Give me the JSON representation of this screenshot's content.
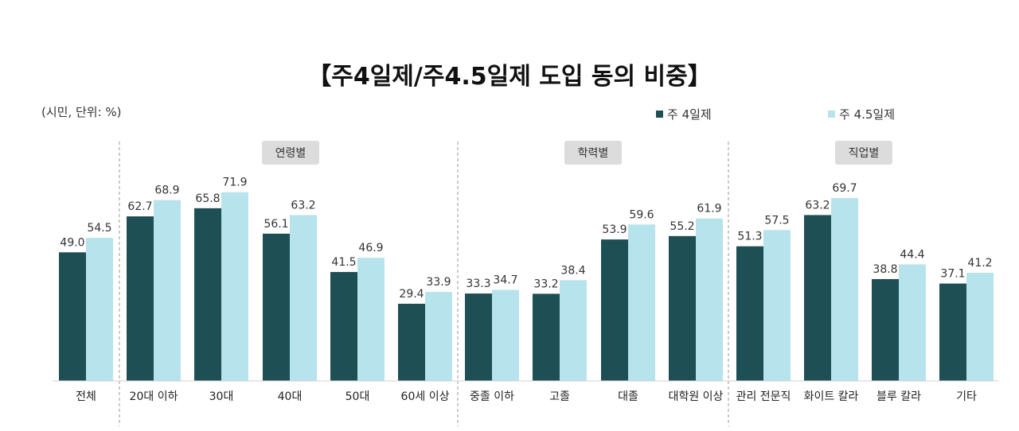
{
  "chart_data": {
    "type": "bar",
    "title": "【주4일제/주4.5일제 도입 동의 비중】",
    "unit_note": "(시민, 단위: %)",
    "ylim": [
      0,
      100
    ],
    "legend_position": "top-right",
    "categories": [
      "전체",
      "20대 이하",
      "30대",
      "40대",
      "50대",
      "60세 이상",
      "중졸 이하",
      "고졸",
      "대졸",
      "대학원 이상",
      "관리 전문직",
      "화이트 칼라",
      "블루 칼라",
      "기타"
    ],
    "series": [
      {
        "name": "주 4일제",
        "color": "#1e4f55",
        "values": [
          49.0,
          62.7,
          65.8,
          56.1,
          41.5,
          29.4,
          33.3,
          33.2,
          53.9,
          55.2,
          51.3,
          63.2,
          38.8,
          37.1
        ],
        "labels": [
          "49.0",
          "62.7",
          "65.8",
          "56.1",
          "41.5",
          "29.4",
          "33.3",
          "33.2",
          "53.9",
          "55.2",
          "51.3",
          "63.2",
          "38.8",
          "37.1"
        ]
      },
      {
        "name": "주 4.5일제",
        "color": "#b7e3ec",
        "values": [
          54.5,
          68.9,
          71.9,
          63.2,
          46.9,
          33.9,
          34.7,
          38.4,
          59.6,
          61.9,
          57.5,
          69.7,
          44.4,
          41.2
        ],
        "labels": [
          "54.5",
          "68.9",
          "71.9",
          "63.2",
          "46.9",
          "33.9",
          "34.7",
          "38.4",
          "59.6",
          "61.9",
          "57.5",
          "69.7",
          "44.4",
          "41.2"
        ]
      }
    ],
    "groups": [
      {
        "label": "연령별",
        "categories": [
          "20대 이하",
          "30대",
          "40대",
          "50대",
          "60세 이상"
        ]
      },
      {
        "label": "학력별",
        "categories": [
          "중졸 이하",
          "고졸",
          "대졸",
          "대학원 이상"
        ]
      },
      {
        "label": "직업별",
        "categories": [
          "관리 전문직",
          "화이트 칼라",
          "블루 칼라",
          "기타"
        ]
      }
    ],
    "grid": false
  }
}
